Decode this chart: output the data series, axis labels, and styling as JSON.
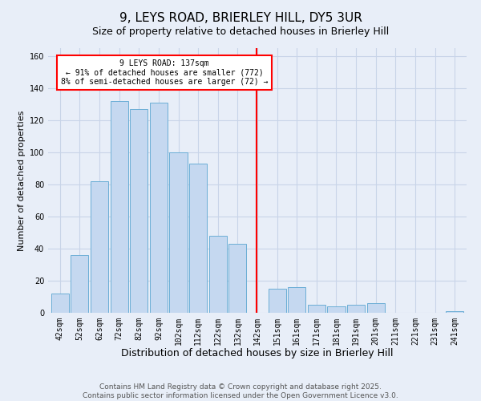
{
  "title": "9, LEYS ROAD, BRIERLEY HILL, DY5 3UR",
  "subtitle": "Size of property relative to detached houses in Brierley Hill",
  "xlabel": "Distribution of detached houses by size in Brierley Hill",
  "ylabel": "Number of detached properties",
  "bar_labels": [
    "42sqm",
    "52sqm",
    "62sqm",
    "72sqm",
    "82sqm",
    "92sqm",
    "102sqm",
    "112sqm",
    "122sqm",
    "132sqm",
    "142sqm",
    "151sqm",
    "161sqm",
    "171sqm",
    "181sqm",
    "191sqm",
    "201sqm",
    "211sqm",
    "221sqm",
    "231sqm",
    "241sqm"
  ],
  "bar_heights": [
    12,
    36,
    82,
    132,
    127,
    131,
    100,
    93,
    48,
    43,
    0,
    15,
    16,
    5,
    4,
    5,
    6,
    0,
    0,
    0,
    1
  ],
  "bar_color": "#c5d8f0",
  "bar_edge_color": "#6baed6",
  "reference_line_label": "9 LEYS ROAD: 137sqm",
  "annotation_line1": "← 91% of detached houses are smaller (772)",
  "annotation_line2": "8% of semi-detached houses are larger (72) →",
  "annotation_box_color": "white",
  "annotation_box_edge_color": "red",
  "reference_line_color": "red",
  "ylim": [
    0,
    165
  ],
  "yticks": [
    0,
    20,
    40,
    60,
    80,
    100,
    120,
    140,
    160
  ],
  "footer1": "Contains HM Land Registry data © Crown copyright and database right 2025.",
  "footer2": "Contains public sector information licensed under the Open Government Licence v3.0.",
  "background_color": "#e8eef8",
  "grid_color": "#c8d4e8",
  "title_fontsize": 11,
  "xlabel_fontsize": 9,
  "ylabel_fontsize": 8,
  "tick_fontsize": 7,
  "annotation_fontsize": 7,
  "footer_fontsize": 6.5
}
